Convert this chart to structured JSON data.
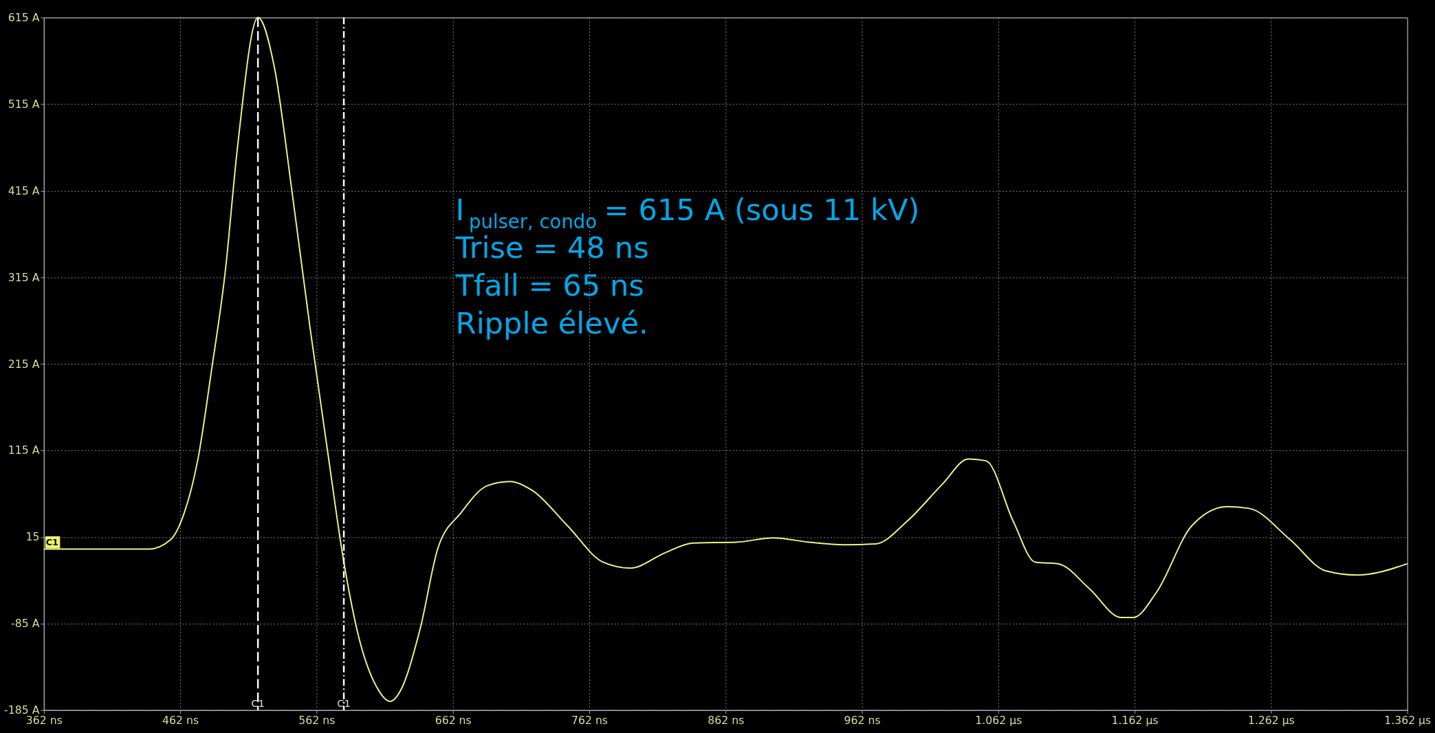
{
  "chart_data": {
    "type": "line",
    "x": [
      362,
      439,
      455,
      465,
      475,
      485,
      495,
      504,
      519,
      531,
      544,
      557,
      570,
      582,
      593,
      606,
      616,
      625,
      638,
      651,
      668,
      687,
      704,
      720,
      746,
      772,
      792,
      818,
      838,
      870,
      897,
      923,
      949,
      972,
      995,
      1021,
      1040,
      1053,
      1073,
      1089,
      1106,
      1129,
      1152,
      1161,
      1178,
      1204,
      1230,
      1246,
      1276,
      1302,
      1325,
      1362
    ],
    "series": [
      {
        "color": "#f2f28a",
        "values": [
          1,
          1,
          12,
          43,
          105,
          208,
          321,
          465,
          615,
          558,
          414,
          259,
          115,
          -14,
          -101,
          -158,
          -175,
          -158,
          -91,
          2,
          43,
          74,
          79,
          69,
          28,
          -14,
          -21,
          -3,
          8,
          9,
          14,
          9,
          6,
          7,
          33,
          76,
          105,
          103,
          33,
          -14,
          -16,
          -45,
          -78,
          -78,
          -49,
          28,
          50,
          48,
          12,
          -24,
          -29,
          -16
        ]
      }
    ],
    "xlim": [
      362,
      1362
    ],
    "xticks": [
      {
        "value": 362,
        "label": "362 ns"
      },
      {
        "value": 462,
        "label": "462 ns"
      },
      {
        "value": 562,
        "label": "562 ns"
      },
      {
        "value": 662,
        "label": "662 ns"
      },
      {
        "value": 762,
        "label": "762 ns"
      },
      {
        "value": 862,
        "label": "862 ns"
      },
      {
        "value": 962,
        "label": "962 ns"
      },
      {
        "value": 1062,
        "label": "1.062 µs"
      },
      {
        "value": 1162,
        "label": "1.162 µs"
      },
      {
        "value": 1262,
        "label": "1.262 µs"
      },
      {
        "value": 1362,
        "label": "1.362 µs"
      }
    ],
    "ylim": [
      -185,
      615
    ],
    "yticks": [
      {
        "value": -185,
        "label": "-185 A"
      },
      {
        "value": -85,
        "label": "-85 A"
      },
      {
        "value": 15,
        "label": "15"
      },
      {
        "value": 115,
        "label": "115 A"
      },
      {
        "value": 215,
        "label": "215 A"
      },
      {
        "value": 315,
        "label": "315 A"
      },
      {
        "value": 415,
        "label": "415 A"
      },
      {
        "value": 515,
        "label": "515 A"
      },
      {
        "value": 615,
        "label": "615 A"
      }
    ],
    "grid": true,
    "ref_lines": [
      {
        "axis": "x",
        "value": 519,
        "label": "C1",
        "color": "#ffffff",
        "line_style": "dashed"
      },
      {
        "axis": "x",
        "value": 582,
        "label": "C1",
        "color": "#ffffff",
        "line_style": "dotted"
      }
    ],
    "annotations": [
      "C1",
      "I$_{pulser, condo}$ = 615 A (sous 11 kV)",
      "Trise = 48 ns",
      "Tfall = 65 ns",
      "Ripple élevé."
    ]
  }
}
